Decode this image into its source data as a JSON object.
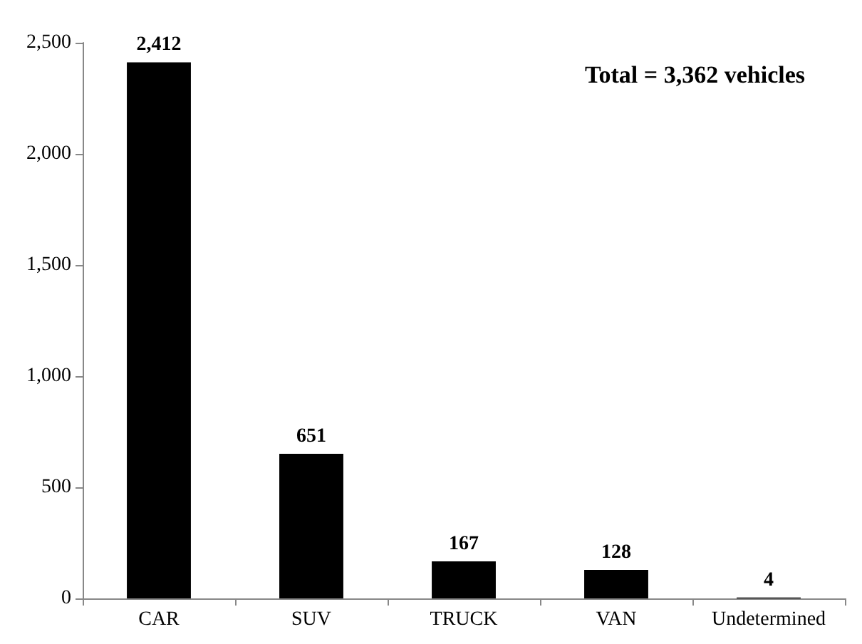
{
  "chart_data": {
    "type": "bar",
    "categories": [
      "CAR",
      "SUV",
      "TRUCK",
      "VAN",
      "Undetermined"
    ],
    "values": [
      2412,
      651,
      167,
      128,
      4
    ],
    "value_labels": [
      "2,412",
      "651",
      "167",
      "128",
      "4"
    ],
    "color": "#000000",
    "ylim": [
      0,
      2500
    ],
    "yticks": [
      {
        "value": 0,
        "label": "0"
      },
      {
        "value": 500,
        "label": "500"
      },
      {
        "value": 1000,
        "label": "1,000"
      },
      {
        "value": 1500,
        "label": "1,500"
      },
      {
        "value": 2000,
        "label": "2,000"
      },
      {
        "value": 2500,
        "label": "2,500"
      }
    ],
    "annotations": [
      "Total = 3,362 vehicles"
    ]
  }
}
